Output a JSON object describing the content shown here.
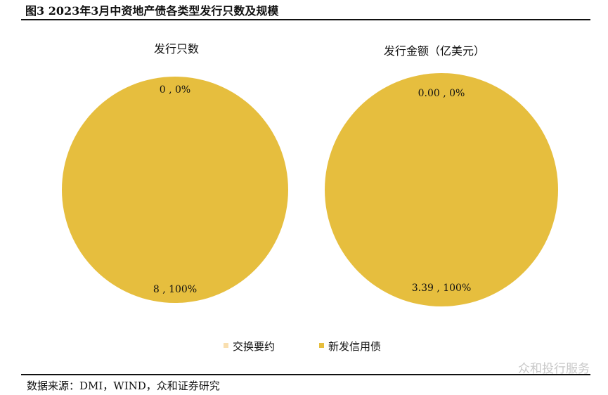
{
  "figure_title": "图3 2023年3月中资地产债各类型发行只数及规模",
  "source": "数据来源：DMI，WIND，众和证券研究",
  "watermark": "众和投行服务",
  "chart_data": [
    {
      "type": "pie",
      "title": "发行只数",
      "labels": [
        "交换要约",
        "新发信用债"
      ],
      "values": [
        0,
        8
      ],
      "data_labels": [
        "0 , 0%",
        "8 , 100%"
      ],
      "colors": [
        "#F9DFB0",
        "#E6BE3E"
      ],
      "legend_position": "bottom"
    },
    {
      "type": "pie",
      "title": "发行金额（亿美元）",
      "labels": [
        "交换要约",
        "新发信用债"
      ],
      "values": [
        0.0,
        3.39
      ],
      "data_labels": [
        "0.00 , 0%",
        "3.39 , 100%"
      ],
      "colors": [
        "#F9DFB0",
        "#E6BE3E"
      ],
      "legend_position": "bottom"
    }
  ],
  "legend": [
    {
      "label": "交换要约",
      "color": "#F9DFB0"
    },
    {
      "label": "新发信用债",
      "color": "#E6BE3E"
    }
  ]
}
